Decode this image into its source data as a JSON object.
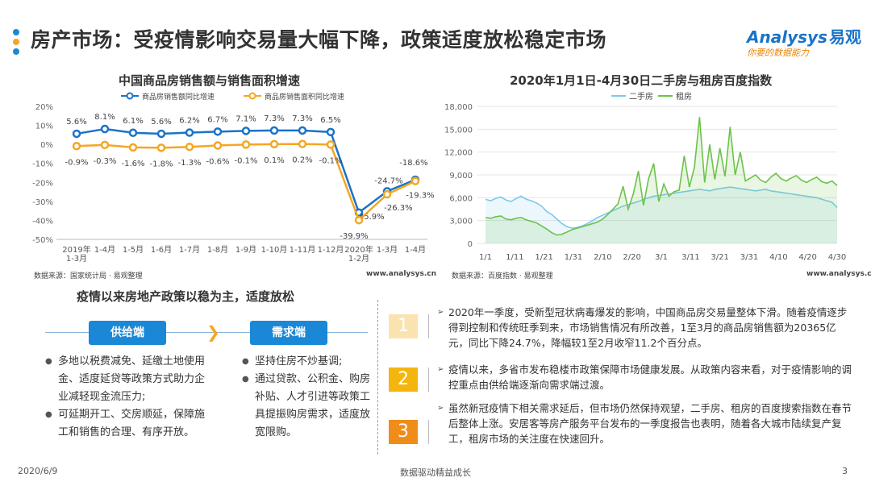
{
  "header": {
    "title": "房产市场：受疫情影响交易量大幅下降，政策适度放松稳定市场",
    "logo_main": "Analysys",
    "logo_cn": "易观",
    "logo_sub": "你要的数据能力",
    "dot_colors": [
      "#1a88d6",
      "#f5a623",
      "#1a88d6"
    ]
  },
  "chart_data": [
    {
      "type": "line",
      "title": "中国商品房销售额与销售面积增速",
      "categories": [
        "2019年\n1-3月",
        "1-4月",
        "1-5月",
        "1-6月",
        "1-7月",
        "1-8月",
        "1-9月",
        "1-10月",
        "1-11月",
        "1-12月",
        "2020年\n1-2月",
        "1-3月",
        "1-4月"
      ],
      "ylim": [
        -50,
        20
      ],
      "yticks": [
        "20%",
        "10%",
        "0%",
        "-10%",
        "-20%",
        "-30%",
        "-40%",
        "-50%"
      ],
      "series": [
        {
          "name": "商品房销售额同比增速",
          "color": "#1a73c8",
          "values": [
            5.6,
            8.1,
            6.1,
            5.6,
            6.2,
            6.7,
            7.1,
            7.3,
            7.3,
            6.5,
            -35.9,
            -24.7,
            -18.6
          ],
          "labels": [
            "5.6%",
            "8.1%",
            "6.1%",
            "5.6%",
            "6.2%",
            "6.7%",
            "7.1%",
            "7.3%",
            "7.3%",
            "6.5%",
            "-35.9%",
            "-24.7%",
            "-18.6%"
          ]
        },
        {
          "name": "商品房销售面积同比增速",
          "color": "#f5a623",
          "values": [
            -0.9,
            -0.3,
            -1.6,
            -1.8,
            -1.3,
            -0.6,
            -0.1,
            0.1,
            0.2,
            -0.1,
            -39.9,
            -26.3,
            -19.3
          ],
          "labels": [
            "-0.9%",
            "-0.3%",
            "-1.6%",
            "-1.8%",
            "-1.3%",
            "-0.6%",
            "-0.1%",
            "0.1%",
            "0.2%",
            "-0.1%",
            "-39.9%",
            "-26.3%",
            "-19.3%"
          ]
        }
      ],
      "source": "数据来源：国家统计局 · 易观整理",
      "site": "www.analysys.cn"
    },
    {
      "type": "area",
      "title": "2020年1月1日-4月30日二手房与租房百度指数",
      "xticks": [
        "1/1",
        "1/11",
        "1/21",
        "1/31",
        "2/10",
        "2/20",
        "3/1",
        "3/11",
        "3/21",
        "3/31",
        "4/10",
        "4/20",
        "4/30"
      ],
      "ylim": [
        0,
        18000
      ],
      "yticks": [
        "18,000",
        "15,000",
        "12,000",
        "9,000",
        "6,000",
        "3,000",
        "0"
      ],
      "series": [
        {
          "name": "二手房",
          "color": "#7ec8ec",
          "values": [
            5800,
            5600,
            5900,
            6100,
            5700,
            5500,
            5900,
            6200,
            5800,
            5600,
            5300,
            4900,
            4200,
            3800,
            3200,
            2600,
            2200,
            2000,
            2100,
            2300,
            2600,
            3000,
            3400,
            3700,
            4000,
            4300,
            4600,
            4900,
            5100,
            5300,
            5500,
            5800,
            6000,
            6200,
            6300,
            6400,
            6500,
            6600,
            6700,
            6800,
            6900,
            7000,
            7100,
            7000,
            6900,
            7100,
            7200,
            7300,
            7400,
            7300,
            7200,
            7100,
            7000,
            6900,
            7000,
            7100,
            6900,
            6800,
            6700,
            6600,
            6500,
            6400,
            6300,
            6200,
            6100,
            6000,
            5800,
            5600,
            5400,
            4700
          ]
        },
        {
          "name": "租房",
          "color": "#6cc24a",
          "values": [
            3400,
            3300,
            3500,
            3600,
            3200,
            3100,
            3300,
            3400,
            3100,
            2900,
            2700,
            2300,
            1900,
            1400,
            1100,
            1200,
            1500,
            1800,
            2000,
            2200,
            2400,
            2600,
            2800,
            3200,
            3800,
            4500,
            5200,
            7500,
            4500,
            6500,
            9500,
            5000,
            8500,
            10500,
            5500,
            7800,
            6200,
            6800,
            7000,
            11500,
            7400,
            10000,
            16600,
            8000,
            13000,
            8400,
            12500,
            8800,
            15300,
            9000,
            12000,
            8200,
            8600,
            9000,
            8300,
            8000,
            8700,
            9200,
            8500,
            8200,
            8600,
            8900,
            8300,
            8000,
            8400,
            8700,
            8100,
            7900,
            8200,
            7600
          ]
        }
      ],
      "source": "数据来源：百度指数 · 易观整理",
      "site": "www.analysys.cn"
    }
  ],
  "policy": {
    "title": "疫情以来房地产政策以稳为主，适度放松",
    "supply_label": "供给端",
    "demand_label": "需求端",
    "supply_items": [
      "多地以税费减免、延缴土地使用金、适度延贷等政策方式助力企业减轻现金流压力;",
      "可延期开工、交房顺延，保障施工和销售的合理、有序开放。"
    ],
    "demand_items": [
      "坚持住房不炒基调;",
      "通过贷款、公积金、购房补贴、人才引进等政策工具提振购房需求，适度放宽限购。"
    ]
  },
  "points": [
    {
      "num": "1",
      "color": "#fbe3b0",
      "text": "2020年一季度，受新型冠状病毒爆发的影响，中国商品房交易量整体下滑。随着疫情逐步得到控制和传统旺季到来，市场销售情况有所改善，1至3月的商品房销售额为20365亿元，同比下降24.7%，降幅较1至2月收窄11.2个百分点。"
    },
    {
      "num": "2",
      "color": "#f5b50f",
      "text": "疫情以来，多省市发布稳楼市政策保障市场健康发展。从政策内容来看，对于疫情影响的调控重点由供给端逐渐向需求端过渡。"
    },
    {
      "num": "3",
      "color": "#f08c1a",
      "text": "虽然新冠疫情下相关需求延后，但市场仍然保持观望，二手房、租房的百度搜索指数在春节后整体上涨。安居客等房产服务平台发布的一季度报告也表明，随着各大城市陆续复产复工，租房市场的关注度在快速回升。"
    }
  ],
  "footer": {
    "date": "2020/6/9",
    "slogan": "数据驱动精益成长",
    "page": "3"
  }
}
